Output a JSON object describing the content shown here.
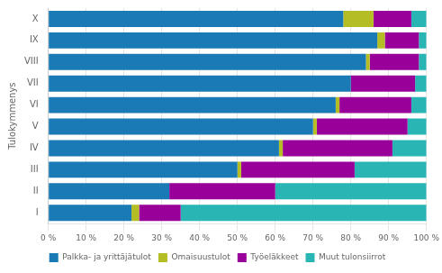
{
  "chart_data": {
    "type": "bar",
    "orientation": "horizontal",
    "stacked": true,
    "categories": [
      "I",
      "II",
      "III",
      "IV",
      "V",
      "VI",
      "VII",
      "VIII",
      "IX",
      "X"
    ],
    "series": [
      {
        "name": "Palkka- ja yrittäjätulot",
        "color": "#1a7ab5",
        "values": [
          22,
          32,
          50,
          61,
          70,
          76,
          80,
          84,
          87,
          78
        ]
      },
      {
        "name": "Omaisuustulot",
        "color": "#b5bd25",
        "values": [
          2,
          0,
          1,
          1,
          1,
          1,
          0,
          1,
          2,
          8
        ]
      },
      {
        "name": "Työeläkkeet",
        "color": "#990099",
        "values": [
          11,
          28,
          30,
          29,
          24,
          19,
          17,
          13,
          9,
          10
        ]
      },
      {
        "name": "Muut tulonsiirrot",
        "color": "#2ab5b5",
        "values": [
          65,
          40,
          19,
          9,
          5,
          4,
          3,
          2,
          2,
          4
        ]
      }
    ],
    "ylabel": "Tulokymmenys",
    "xlim": [
      0,
      100
    ],
    "xticks": [
      {
        "value": 0,
        "label": "0 %"
      },
      {
        "value": 10,
        "label": "10 %"
      },
      {
        "value": 20,
        "label": "20 %"
      },
      {
        "value": 30,
        "label": "30 %"
      },
      {
        "value": 40,
        "label": "40 %"
      },
      {
        "value": 50,
        "label": "50 %"
      },
      {
        "value": 60,
        "label": "60 %"
      },
      {
        "value": 70,
        "label": "70 %"
      },
      {
        "value": 80,
        "label": "80 %"
      },
      {
        "value": 90,
        "label": "90 %"
      },
      {
        "value": 100,
        "label": "100 %"
      }
    ],
    "grid": true,
    "legend": "bottom"
  }
}
